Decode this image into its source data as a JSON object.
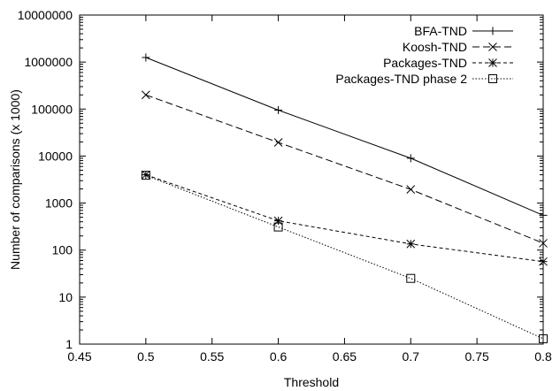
{
  "chart_data": {
    "type": "line",
    "title": "",
    "xlabel": "Threshold",
    "ylabel": "Number of comparisons (x 1000)",
    "xlim": [
      0.45,
      0.8
    ],
    "ylim": [
      1,
      10000000
    ],
    "yscale": "log",
    "grid": false,
    "legend_position": "top-right",
    "x_ticks": [
      0.45,
      0.5,
      0.55,
      0.6,
      0.65,
      0.7,
      0.75,
      0.8
    ],
    "x_tick_labels": [
      "0.45",
      "0.5",
      "0.55",
      "0.6",
      "0.65",
      "0.7",
      "0.75",
      "0.8"
    ],
    "y_ticks": [
      1,
      10,
      100,
      1000,
      10000,
      100000,
      1000000,
      10000000
    ],
    "y_tick_labels": [
      "1",
      "10",
      "100",
      "1000",
      "10000",
      "100000",
      "1000000",
      "10000000"
    ],
    "x": [
      0.5,
      0.6,
      0.7,
      0.8
    ],
    "series": [
      {
        "name": "BFA-TND",
        "values": [
          1250000,
          95000,
          9000,
          550
        ],
        "marker": "plus",
        "dash": "solid"
      },
      {
        "name": "Koosh-TND",
        "values": [
          200000,
          19500,
          1950,
          140
        ],
        "marker": "cross",
        "dash": "dashed"
      },
      {
        "name": "Packages-TND",
        "values": [
          4000,
          420,
          135,
          57
        ],
        "marker": "star",
        "dash": "short-dashed"
      },
      {
        "name": "Packages-TND phase 2",
        "values": [
          3900,
          310,
          25,
          1.3
        ],
        "marker": "square",
        "dash": "dotted"
      }
    ]
  }
}
